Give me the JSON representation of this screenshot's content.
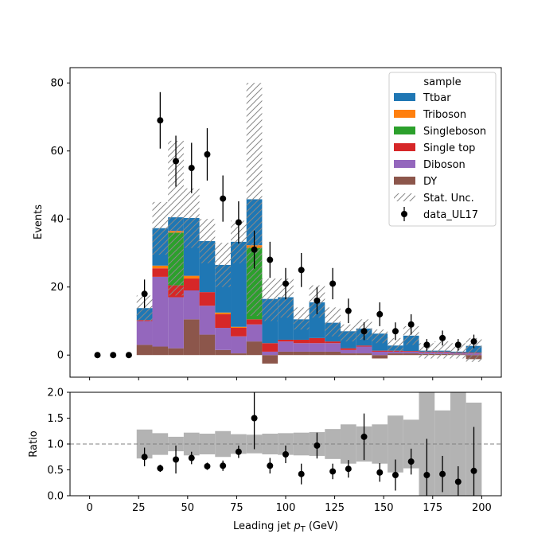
{
  "chart_data": [
    {
      "type": "bar",
      "stacked": true,
      "ylabel": "Events",
      "ylim": [
        -6.5,
        84.5
      ],
      "xlim": [
        -10,
        210
      ],
      "yticks": [
        0,
        20,
        40,
        60,
        80
      ],
      "bin_edges": [
        24,
        32,
        40,
        48,
        56,
        64,
        72,
        80,
        88,
        96,
        104,
        112,
        120,
        128,
        136,
        144,
        152,
        160,
        168,
        176,
        184,
        192,
        200
      ],
      "legend": {
        "title": "sample",
        "position": "top-right",
        "entries": [
          "Ttbar",
          "Triboson",
          "Singleboson",
          "Single top",
          "Diboson",
          "DY",
          "Stat. Unc.",
          "data_UL17"
        ]
      },
      "series": [
        {
          "name": "DY",
          "color": "#8c564b",
          "values": [
            3,
            2.5,
            2,
            10.5,
            6,
            1.5,
            0.5,
            4,
            -2.5,
            1,
            1,
            1,
            1,
            0.5,
            0.5,
            -1,
            0.5,
            0.5,
            0.3,
            0.3,
            0.2,
            -1.2
          ]
        },
        {
          "name": "Diboson",
          "color": "#9467bd",
          "values": [
            7,
            20.5,
            15,
            8.5,
            8.5,
            6.5,
            5,
            5,
            1,
            3,
            2.5,
            2.5,
            2.5,
            1,
            2,
            1,
            0.5,
            0.5,
            0.5,
            0.5,
            0.3,
            0.5
          ]
        },
        {
          "name": "Single top",
          "color": "#d62728",
          "values": [
            0.3,
            2.5,
            3.5,
            3.5,
            4,
            4,
            2.5,
            1.5,
            2.5,
            0.5,
            1,
            1.5,
            0.5,
            0.5,
            0.3,
            0.3,
            0.3,
            0.2,
            0.2,
            0.2,
            0.2,
            0.2
          ]
        },
        {
          "name": "Singleboson",
          "color": "#2ca02c",
          "values": [
            0,
            0,
            15.5,
            0,
            0,
            0,
            0,
            21,
            0,
            0,
            0,
            0,
            0,
            0,
            0,
            0,
            0,
            0,
            0,
            0,
            0,
            0
          ]
        },
        {
          "name": "Triboson",
          "color": "#ff7f0e",
          "values": [
            0,
            0.8,
            0.5,
            0.8,
            0,
            0.5,
            0.3,
            0.8,
            0,
            0,
            0,
            0,
            0,
            0,
            0,
            0,
            0,
            0,
            0,
            0,
            0,
            0
          ]
        },
        {
          "name": "Ttbar",
          "color": "#1f77b4",
          "values": [
            3.5,
            11,
            4,
            17,
            15,
            14,
            25,
            13.5,
            13,
            12.5,
            6,
            10.5,
            5.5,
            5,
            5,
            5,
            1.5,
            4.5,
            0.3,
            0.3,
            0.3,
            2
          ]
        }
      ],
      "mc_total": [
        13.8,
        37.3,
        40.5,
        40.3,
        33.5,
        26.5,
        33.3,
        45.8,
        16,
        17,
        10.5,
        15.5,
        9.5,
        7,
        7.8,
        5.3,
        2.8,
        5.7,
        1.3,
        1.3,
        1.0,
        1.5
      ],
      "stat_unc_band": {
        "name": "Stat. Unc.",
        "low": [
          10,
          29.5,
          17.5,
          31.5,
          27,
          20,
          27,
          11.5,
          10,
          11,
          7.5,
          11,
          5.5,
          4,
          4.5,
          3.5,
          1,
          3,
          -1,
          -1,
          -1,
          -2
        ],
        "high": [
          17.5,
          45,
          63,
          49,
          40,
          33,
          39.5,
          80,
          22.5,
          22.5,
          14,
          20.5,
          14,
          9,
          10.5,
          7.5,
          5,
          8.5,
          3.5,
          4,
          3.5,
          5
        ]
      },
      "data": {
        "name": "data_UL17",
        "x": [
          4,
          12,
          20,
          28,
          36,
          44,
          52,
          60,
          68,
          76,
          84,
          92,
          100,
          108,
          116,
          124,
          132,
          140,
          148,
          156,
          164,
          172,
          180,
          188,
          196
        ],
        "y": [
          0,
          0,
          0,
          18,
          69,
          57,
          55,
          59,
          46,
          39,
          31,
          28,
          21,
          25,
          16,
          21,
          13,
          7,
          12,
          7,
          9,
          3,
          5,
          3,
          4
        ],
        "yerr": [
          0,
          0,
          0,
          4.2,
          8.3,
          7.5,
          7.4,
          7.7,
          6.8,
          6.2,
          5.6,
          5.3,
          4.6,
          5.0,
          4.0,
          4.6,
          3.6,
          2.6,
          3.5,
          2.6,
          3.0,
          1.7,
          2.2,
          1.7,
          2.0
        ]
      }
    },
    {
      "type": "scatter",
      "xlabel": "Leading jet  p_T (GeV)",
      "xlabel_parts": {
        "pre": "Leading jet  ",
        "var": "p",
        "sub": "T",
        "post": " (GeV)"
      },
      "ylabel": "Ratio",
      "ylim": [
        0,
        2
      ],
      "xlim": [
        -10,
        210
      ],
      "yticks": [
        "0.0",
        "0.5",
        "1.0",
        "1.5",
        "2.0"
      ],
      "xticks": [
        "0",
        "25",
        "50",
        "75",
        "100",
        "125",
        "150",
        "175",
        "200"
      ],
      "reference_line": 1.0,
      "unc_band": {
        "low": [
          0.72,
          0.79,
          0.86,
          0.78,
          0.8,
          0.75,
          0.81,
          0.82,
          0.8,
          0.79,
          0.78,
          0.77,
          0.71,
          0.62,
          0.66,
          0.62,
          0.45,
          0.53,
          0.0,
          0.0,
          0.0,
          0.0
        ],
        "high": [
          1.28,
          1.21,
          1.14,
          1.22,
          1.2,
          1.25,
          1.19,
          1.18,
          1.2,
          1.21,
          1.22,
          1.23,
          1.29,
          1.38,
          1.34,
          1.38,
          1.55,
          1.47,
          2.0,
          1.65,
          2.0,
          1.8
        ]
      },
      "points": {
        "x": [
          28,
          36,
          44,
          52,
          60,
          68,
          76,
          84,
          92,
          100,
          108,
          116,
          124,
          132,
          140,
          148,
          156,
          164,
          172,
          180,
          188,
          196
        ],
        "y": [
          0.75,
          0.53,
          0.7,
          0.73,
          0.57,
          0.58,
          0.85,
          1.5,
          0.58,
          0.8,
          0.42,
          0.97,
          0.47,
          0.52,
          1.14,
          0.45,
          0.4,
          0.66,
          0.4,
          0.42,
          0.27,
          0.48
        ],
        "err": [
          0.18,
          0.07,
          0.27,
          0.12,
          0.07,
          0.1,
          0.12,
          0.6,
          0.15,
          0.17,
          0.2,
          0.25,
          0.15,
          0.17,
          0.45,
          0.18,
          0.3,
          0.25,
          0.7,
          0.35,
          0.3,
          0.85
        ]
      }
    }
  ]
}
